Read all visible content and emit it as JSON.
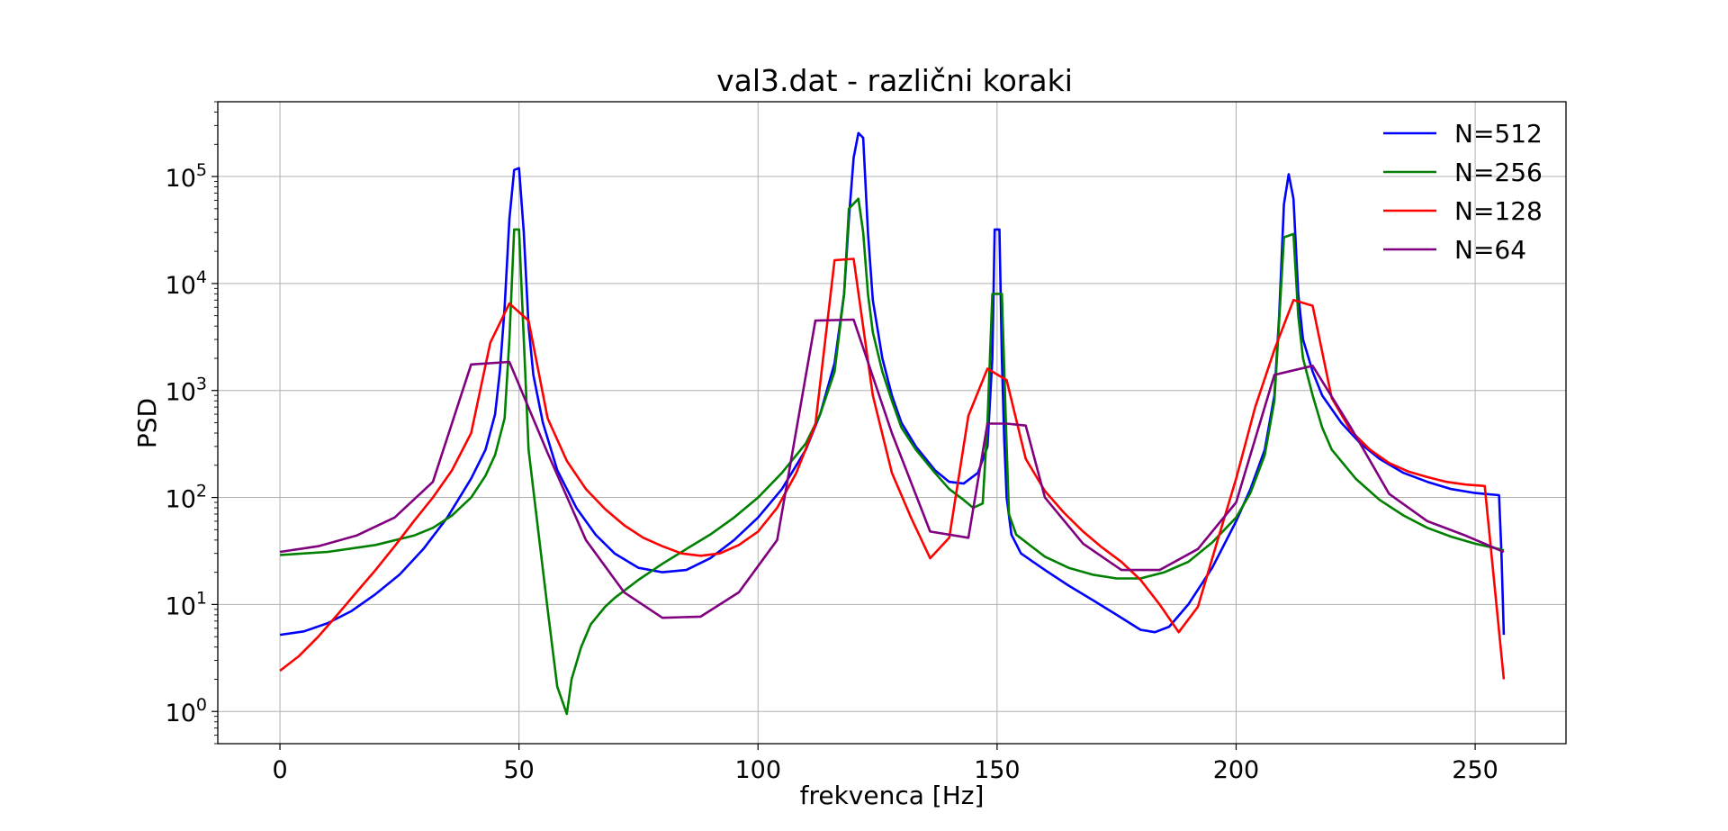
{
  "chart_data": {
    "type": "line",
    "title": "val3.dat - različni koraki",
    "xlabel": "frekvenca [Hz]",
    "ylabel": "PSD",
    "xlim": [
      -13,
      269
    ],
    "ylim": [
      0.5,
      500000
    ],
    "yscale": "log",
    "grid": true,
    "legend_position": "top-right",
    "xticks": [
      0,
      50,
      100,
      150,
      200,
      250
    ],
    "yticks": [
      {
        "value": 1,
        "base": "10",
        "exp": "0"
      },
      {
        "value": 10,
        "base": "10",
        "exp": "1"
      },
      {
        "value": 100,
        "base": "10",
        "exp": "2"
      },
      {
        "value": 1000,
        "base": "10",
        "exp": "3"
      },
      {
        "value": 10000,
        "base": "10",
        "exp": "4"
      },
      {
        "value": 100000,
        "base": "10",
        "exp": "5"
      }
    ],
    "series": [
      {
        "name": "N=512",
        "color": "#0000ff",
        "points": [
          [
            0,
            5.2
          ],
          [
            5,
            5.6
          ],
          [
            10,
            6.7
          ],
          [
            15,
            8.7
          ],
          [
            20,
            12.5
          ],
          [
            25,
            19
          ],
          [
            30,
            33
          ],
          [
            35,
            65
          ],
          [
            40,
            150
          ],
          [
            43,
            280
          ],
          [
            45,
            600
          ],
          [
            46,
            1500
          ],
          [
            47,
            6000
          ],
          [
            48,
            40000
          ],
          [
            49,
            115000
          ],
          [
            50,
            120000
          ],
          [
            51,
            30000
          ],
          [
            52,
            4000
          ],
          [
            53,
            1400
          ],
          [
            55,
            500
          ],
          [
            58,
            180
          ],
          [
            62,
            80
          ],
          [
            66,
            45
          ],
          [
            70,
            30
          ],
          [
            75,
            22
          ],
          [
            80,
            20
          ],
          [
            85,
            21
          ],
          [
            90,
            27
          ],
          [
            95,
            40
          ],
          [
            100,
            65
          ],
          [
            105,
            120
          ],
          [
            110,
            280
          ],
          [
            113,
            600
          ],
          [
            116,
            1800
          ],
          [
            118,
            8000
          ],
          [
            119,
            40000
          ],
          [
            120,
            150000
          ],
          [
            121,
            255000
          ],
          [
            122,
            230000
          ],
          [
            123,
            30000
          ],
          [
            124,
            7000
          ],
          [
            126,
            2000
          ],
          [
            128,
            900
          ],
          [
            130,
            500
          ],
          [
            133,
            300
          ],
          [
            137,
            180
          ],
          [
            140,
            140
          ],
          [
            143,
            135
          ],
          [
            146,
            170
          ],
          [
            148,
            300
          ],
          [
            149,
            2000
          ],
          [
            149.5,
            32000
          ],
          [
            150.5,
            32000
          ],
          [
            151,
            2000
          ],
          [
            151.5,
            350
          ],
          [
            152,
            100
          ],
          [
            153,
            45
          ],
          [
            155,
            30
          ],
          [
            160,
            21
          ],
          [
            165,
            15
          ],
          [
            170,
            11
          ],
          [
            175,
            8
          ],
          [
            180,
            5.8
          ],
          [
            183,
            5.5
          ],
          [
            186,
            6.2
          ],
          [
            190,
            10
          ],
          [
            195,
            22
          ],
          [
            200,
            60
          ],
          [
            203,
            120
          ],
          [
            206,
            280
          ],
          [
            208,
            900
          ],
          [
            209,
            5000
          ],
          [
            210,
            55000
          ],
          [
            211,
            105000
          ],
          [
            212,
            62000
          ],
          [
            213,
            8000
          ],
          [
            214,
            3000
          ],
          [
            216,
            1500
          ],
          [
            218,
            900
          ],
          [
            222,
            500
          ],
          [
            226,
            320
          ],
          [
            230,
            230
          ],
          [
            235,
            170
          ],
          [
            240,
            140
          ],
          [
            245,
            120
          ],
          [
            250,
            110
          ],
          [
            255,
            105
          ],
          [
            255.5,
            30
          ],
          [
            256,
            5.2
          ]
        ]
      },
      {
        "name": "N=256",
        "color": "#008000",
        "points": [
          [
            0,
            29
          ],
          [
            10,
            31
          ],
          [
            20,
            36
          ],
          [
            28,
            44
          ],
          [
            32,
            52
          ],
          [
            36,
            68
          ],
          [
            40,
            100
          ],
          [
            43,
            160
          ],
          [
            45,
            250
          ],
          [
            47,
            550
          ],
          [
            48,
            3000
          ],
          [
            49,
            32000
          ],
          [
            50,
            32000
          ],
          [
            51,
            3000
          ],
          [
            52,
            280
          ],
          [
            54,
            50
          ],
          [
            56,
            9
          ],
          [
            58,
            1.7
          ],
          [
            60,
            0.95
          ],
          [
            61,
            2
          ],
          [
            63,
            4
          ],
          [
            65,
            6.5
          ],
          [
            68,
            9.5
          ],
          [
            70,
            11.5
          ],
          [
            75,
            17
          ],
          [
            80,
            24
          ],
          [
            85,
            33
          ],
          [
            90,
            45
          ],
          [
            95,
            65
          ],
          [
            100,
            100
          ],
          [
            105,
            170
          ],
          [
            110,
            320
          ],
          [
            113,
            600
          ],
          [
            116,
            1500
          ],
          [
            118,
            8000
          ],
          [
            119,
            50000
          ],
          [
            121,
            62000
          ],
          [
            122,
            30000
          ],
          [
            123,
            8000
          ],
          [
            124,
            3500
          ],
          [
            126,
            1500
          ],
          [
            128,
            800
          ],
          [
            130,
            450
          ],
          [
            133,
            280
          ],
          [
            137,
            170
          ],
          [
            140,
            120
          ],
          [
            143,
            95
          ],
          [
            145,
            80
          ],
          [
            147,
            88
          ],
          [
            148,
            500
          ],
          [
            149,
            8000
          ],
          [
            151,
            8000
          ],
          [
            152,
            300
          ],
          [
            152.5,
            70
          ],
          [
            154,
            45
          ],
          [
            160,
            28
          ],
          [
            165,
            22
          ],
          [
            170,
            19
          ],
          [
            175,
            17.5
          ],
          [
            180,
            17.5
          ],
          [
            185,
            20
          ],
          [
            190,
            25
          ],
          [
            195,
            38
          ],
          [
            200,
            65
          ],
          [
            203,
            110
          ],
          [
            206,
            250
          ],
          [
            208,
            800
          ],
          [
            209,
            4500
          ],
          [
            210,
            27000
          ],
          [
            212,
            29000
          ],
          [
            213,
            5000
          ],
          [
            214,
            2000
          ],
          [
            216,
            900
          ],
          [
            218,
            450
          ],
          [
            220,
            280
          ],
          [
            225,
            150
          ],
          [
            230,
            95
          ],
          [
            235,
            68
          ],
          [
            240,
            52
          ],
          [
            245,
            43
          ],
          [
            250,
            37
          ],
          [
            255,
            33
          ],
          [
            256,
            32
          ]
        ]
      },
      {
        "name": "N=128",
        "color": "#ff0000",
        "points": [
          [
            0,
            2.4
          ],
          [
            4,
            3.3
          ],
          [
            8,
            5
          ],
          [
            12,
            8
          ],
          [
            16,
            13
          ],
          [
            20,
            21
          ],
          [
            24,
            35
          ],
          [
            28,
            60
          ],
          [
            32,
            100
          ],
          [
            36,
            180
          ],
          [
            40,
            400
          ],
          [
            44,
            2800
          ],
          [
            48,
            6500
          ],
          [
            52,
            4500
          ],
          [
            56,
            550
          ],
          [
            60,
            220
          ],
          [
            64,
            120
          ],
          [
            68,
            78
          ],
          [
            72,
            55
          ],
          [
            76,
            42
          ],
          [
            80,
            35
          ],
          [
            84,
            30
          ],
          [
            88,
            28.5
          ],
          [
            92,
            30
          ],
          [
            96,
            36
          ],
          [
            100,
            48
          ],
          [
            104,
            80
          ],
          [
            108,
            170
          ],
          [
            112,
            480
          ],
          [
            116,
            16500
          ],
          [
            120,
            17000
          ],
          [
            124,
            900
          ],
          [
            128,
            170
          ],
          [
            132,
            65
          ],
          [
            136,
            27
          ],
          [
            140,
            42
          ],
          [
            144,
            580
          ],
          [
            148,
            1600
          ],
          [
            152,
            1250
          ],
          [
            156,
            230
          ],
          [
            160,
            115
          ],
          [
            164,
            72
          ],
          [
            168,
            48
          ],
          [
            172,
            34
          ],
          [
            176,
            25
          ],
          [
            180,
            17
          ],
          [
            184,
            10
          ],
          [
            188,
            5.5
          ],
          [
            192,
            9.5
          ],
          [
            196,
            38
          ],
          [
            200,
            150
          ],
          [
            204,
            700
          ],
          [
            208,
            2400
          ],
          [
            212,
            7000
          ],
          [
            216,
            6200
          ],
          [
            220,
            850
          ],
          [
            224,
            420
          ],
          [
            228,
            280
          ],
          [
            232,
            210
          ],
          [
            236,
            175
          ],
          [
            240,
            155
          ],
          [
            244,
            140
          ],
          [
            248,
            132
          ],
          [
            252,
            128
          ],
          [
            256,
            2
          ]
        ]
      },
      {
        "name": "N=64",
        "color": "#800080",
        "points": [
          [
            0,
            31
          ],
          [
            8,
            35
          ],
          [
            16,
            44
          ],
          [
            24,
            65
          ],
          [
            32,
            140
          ],
          [
            40,
            1750
          ],
          [
            48,
            1850
          ],
          [
            56,
            260
          ],
          [
            64,
            40
          ],
          [
            72,
            13
          ],
          [
            80,
            7.5
          ],
          [
            88,
            7.7
          ],
          [
            96,
            13
          ],
          [
            104,
            40
          ],
          [
            112,
            4500
          ],
          [
            120,
            4600
          ],
          [
            128,
            400
          ],
          [
            136,
            48
          ],
          [
            144,
            42
          ],
          [
            148,
            490
          ],
          [
            152,
            490
          ],
          [
            156,
            470
          ],
          [
            160,
            100
          ],
          [
            168,
            37
          ],
          [
            176,
            21
          ],
          [
            184,
            21
          ],
          [
            192,
            33
          ],
          [
            200,
            90
          ],
          [
            208,
            1400
          ],
          [
            216,
            1700
          ],
          [
            224,
            450
          ],
          [
            232,
            108
          ],
          [
            240,
            60
          ],
          [
            248,
            44
          ],
          [
            256,
            31
          ]
        ]
      }
    ]
  }
}
